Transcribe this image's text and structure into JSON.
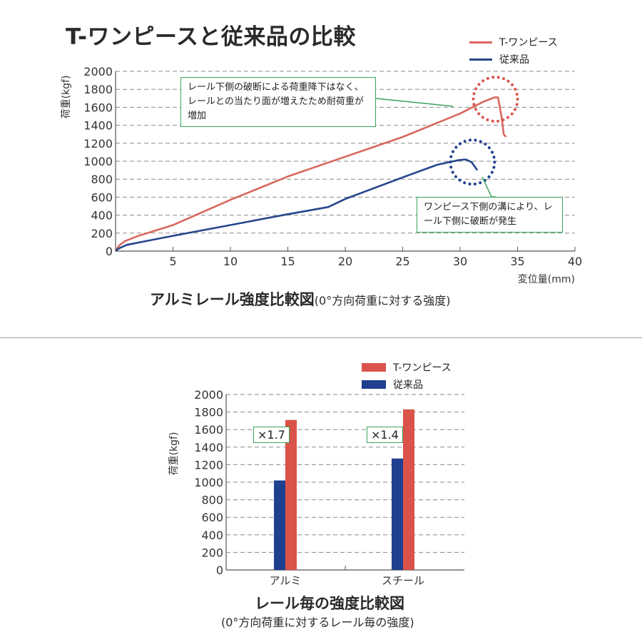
{
  "page_title": "T-ワンピースと従来品の比較",
  "colors": {
    "t_onepiece_line": "#d9675e",
    "conventional_line": "#26468c",
    "t_onepiece_bar": "#d9534a",
    "conventional_bar": "#1f3f8f",
    "callout_border": "#3aa35b",
    "grid": "#8a8a8a"
  },
  "chart_data": [
    {
      "type": "line",
      "caption": "アルミレール強度比較図",
      "caption_sub": "(0°方向荷重に対する強度)",
      "xlabel": "変位量(mm)",
      "ylabel": "荷重(kgf)",
      "xlim": [
        0,
        40
      ],
      "ylim": [
        0,
        2000
      ],
      "x_ticks": [
        "5",
        "10",
        "15",
        "20",
        "25",
        "30",
        "35",
        "40"
      ],
      "y_ticks": [
        "0",
        "200",
        "400",
        "600",
        "800",
        "1000",
        "1200",
        "1400",
        "1600",
        "1800",
        "2000"
      ],
      "grid": true,
      "legend_position": "top-right",
      "series": [
        {
          "name": "T-ワンピース",
          "points": [
            [
              0,
              0
            ],
            [
              0.3,
              60
            ],
            [
              0.8,
              110
            ],
            [
              2,
              170
            ],
            [
              5,
              290
            ],
            [
              10,
              570
            ],
            [
              15,
              830
            ],
            [
              20,
              1050
            ],
            [
              25,
              1270
            ],
            [
              30,
              1530
            ],
            [
              32,
              1660
            ],
            [
              33,
              1710
            ],
            [
              33.3,
              1710
            ],
            [
              33.6,
              1500
            ],
            [
              33.8,
              1300
            ],
            [
              34,
              1270
            ]
          ]
        },
        {
          "name": "従来品",
          "points": [
            [
              0,
              0
            ],
            [
              0.3,
              30
            ],
            [
              1,
              70
            ],
            [
              3,
              120
            ],
            [
              5,
              170
            ],
            [
              10,
              290
            ],
            [
              15,
              410
            ],
            [
              18.5,
              490
            ],
            [
              20,
              580
            ],
            [
              25,
              820
            ],
            [
              28,
              960
            ],
            [
              29.8,
              1010
            ],
            [
              30.5,
              1020
            ],
            [
              31,
              990
            ],
            [
              31.5,
              900
            ]
          ]
        }
      ],
      "annotations": [
        "レール下側の破断による荷重降下はなく、レールとの当たり面が増えたため耐荷重が増加",
        "ワンピース下側の溝により、レール下側に破断が発生"
      ]
    },
    {
      "type": "bar",
      "caption": "レール毎の強度比較図",
      "caption_sub": "(0°方向荷重に対するレール毎の強度)",
      "ylabel": "荷重(kgf)",
      "ylim": [
        0,
        2000
      ],
      "y_ticks": [
        "0",
        "200",
        "400",
        "600",
        "800",
        "1000",
        "1200",
        "1400",
        "1600",
        "1800",
        "2000"
      ],
      "categories": [
        "アルミ",
        "スチール"
      ],
      "grid": true,
      "legend_position": "top-right",
      "series": [
        {
          "name": "従来品",
          "values": [
            1020,
            1270
          ]
        },
        {
          "name": "T-ワンピース",
          "values": [
            1710,
            1830
          ]
        }
      ],
      "annotations": [
        "×1.7",
        "×1.4"
      ]
    }
  ]
}
